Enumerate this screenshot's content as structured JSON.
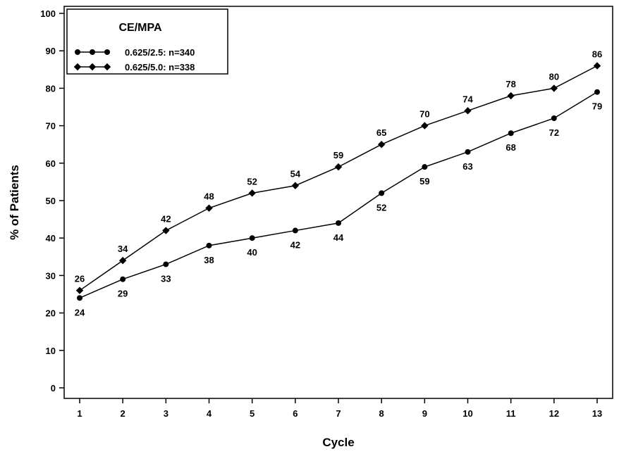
{
  "chart_data": {
    "type": "line",
    "xlabel": "Cycle",
    "ylabel": "% of Patients",
    "x": [
      1,
      2,
      3,
      4,
      5,
      6,
      7,
      8,
      9,
      10,
      11,
      12,
      13
    ],
    "ylim": [
      0,
      100
    ],
    "yticks": [
      0,
      10,
      20,
      30,
      40,
      50,
      60,
      70,
      80,
      90,
      100
    ],
    "grid": false,
    "legend": {
      "title": "CE/MPA",
      "placement": "top-left"
    },
    "series": [
      {
        "name": "0.625/2.5: n=340",
        "marker": "circle",
        "label_position": "below",
        "values": [
          24,
          29,
          33,
          38,
          40,
          42,
          44,
          52,
          59,
          63,
          68,
          72,
          79
        ]
      },
      {
        "name": "0.625/5.0: n=338",
        "marker": "diamond",
        "label_position": "above",
        "values": [
          26,
          34,
          42,
          48,
          52,
          54,
          59,
          65,
          70,
          74,
          78,
          80,
          86
        ]
      }
    ]
  }
}
